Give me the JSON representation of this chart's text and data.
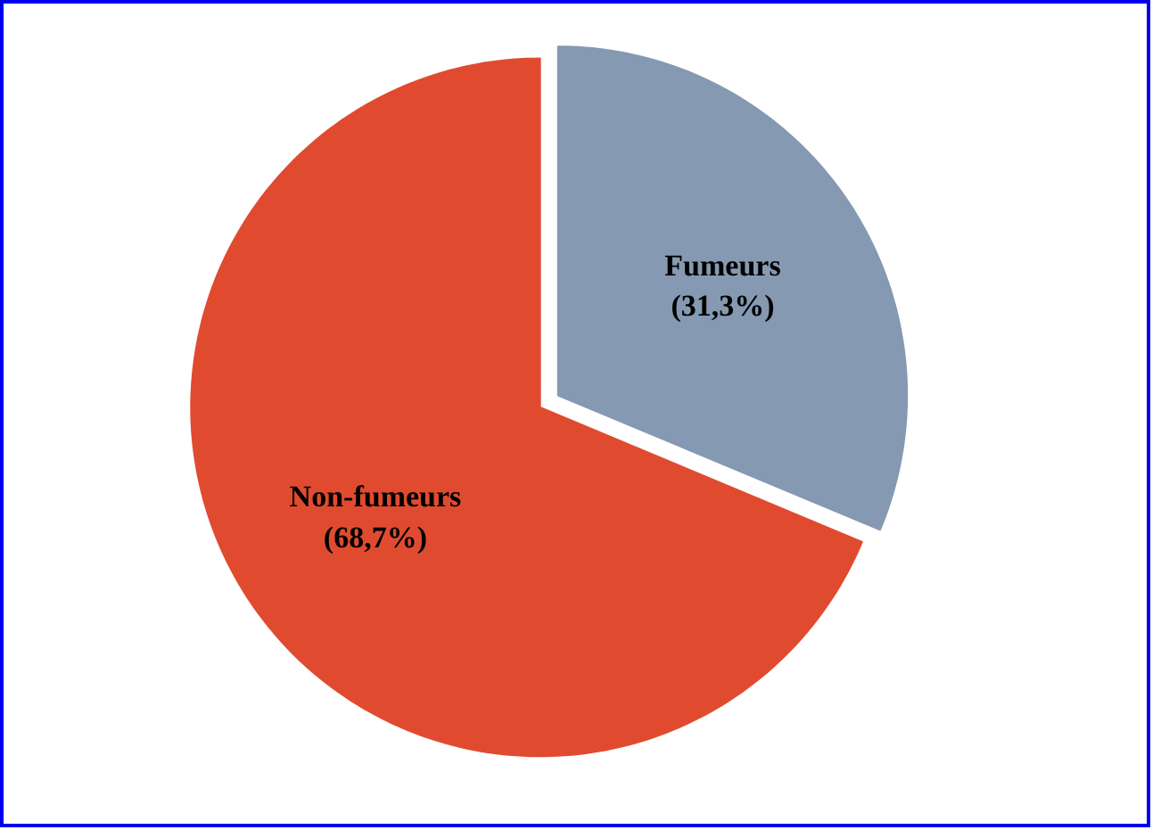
{
  "chart_data": {
    "type": "pie",
    "categories": [
      "Fumeurs",
      "Non-fumeurs"
    ],
    "values": [
      31.3,
      68.7
    ],
    "colors": [
      "#8599b2",
      "#e04b30"
    ],
    "value_labels": [
      "(31,3%)",
      "(68,7%)"
    ],
    "legend": false
  }
}
